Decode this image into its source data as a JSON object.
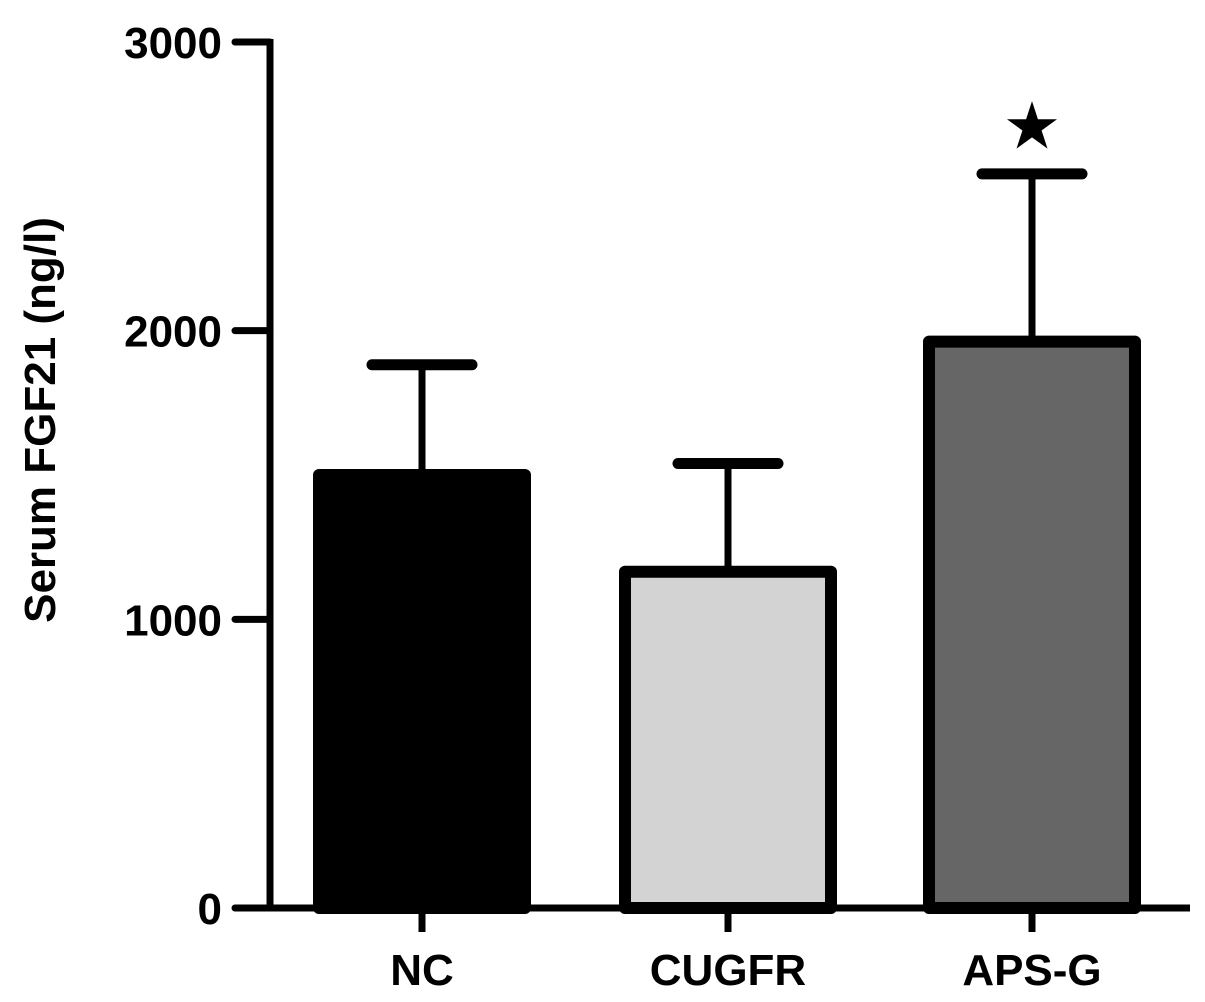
{
  "chart_data": {
    "type": "bar",
    "title": "",
    "xlabel": "",
    "ylabel": "Serum FGF21 (ng/l)",
    "ylim": [
      0,
      3000
    ],
    "yticks": [
      "0",
      "1000",
      "2000",
      "3000"
    ],
    "categories": [
      "NC",
      "CUGFR",
      "APS-G"
    ],
    "values": [
      1500,
      1165,
      1962
    ],
    "errors_upper": [
      1882,
      1540,
      2543
    ],
    "colors": [
      "#000000",
      "#d3d3d3",
      "#666666"
    ],
    "annotations": [
      {
        "category": "APS-G",
        "text": "★"
      }
    ],
    "grid": false
  }
}
